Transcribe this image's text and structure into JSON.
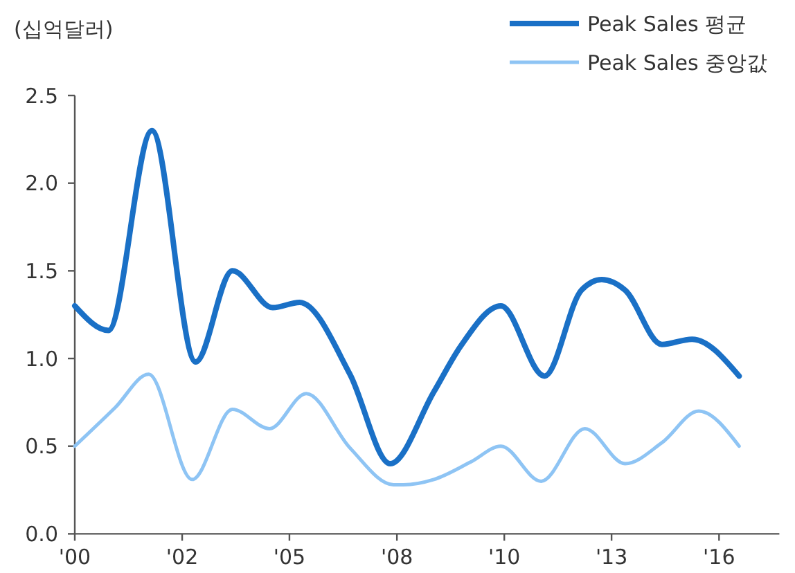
{
  "chart_data": {
    "type": "line",
    "ylabel": "(십억달러)",
    "legend": "top right",
    "grid": false,
    "marker": "none",
    "line_style": "solid",
    "xlim": [
      "2000-01",
      "2017-07"
    ],
    "ylim": [
      0,
      2.5
    ],
    "xticks": [
      {
        "value": "2000-01",
        "label": "'00"
      },
      {
        "value": "2002-09",
        "label": "'02"
      },
      {
        "value": "2005-05",
        "label": "'05"
      },
      {
        "value": "2008-01",
        "label": "'08"
      },
      {
        "value": "2010-09",
        "label": "'10"
      },
      {
        "value": "2013-05",
        "label": "'13"
      },
      {
        "value": "2016-01",
        "label": "'16"
      }
    ],
    "yticks": [
      {
        "value": 0,
        "label": "0.0"
      },
      {
        "value": 0.5,
        "label": "0.5"
      },
      {
        "value": 1,
        "label": "1.0"
      },
      {
        "value": 1.5,
        "label": "1.5"
      },
      {
        "value": 2,
        "label": "2.0"
      },
      {
        "value": 2.5,
        "label": "2.5"
      }
    ],
    "series": [
      {
        "name": "Peak Sales 평균",
        "color": "#1a70c6",
        "x": [
          "2000-01",
          "2000-11",
          "2001-12",
          "2003-01",
          "2003-12",
          "2004-12",
          "2005-08",
          "2006-11",
          "2007-11",
          "2008-12",
          "2009-08",
          "2010-08",
          "2011-09",
          "2012-08",
          "2013-02",
          "2013-09",
          "2014-08",
          "2015-05",
          "2016-07"
        ],
        "values": [
          1.3,
          1.16,
          2.3,
          0.98,
          1.5,
          1.29,
          1.32,
          0.91,
          0.4,
          0.81,
          1.07,
          1.3,
          0.9,
          1.39,
          1.45,
          1.39,
          1.08,
          1.11,
          0.9
        ]
      },
      {
        "name": "Peak Sales 중앙값",
        "color": "#8ec4f4",
        "x": [
          "2000-01",
          "2001-01",
          "2001-11",
          "2002-12",
          "2003-12",
          "2004-11",
          "2005-10",
          "2006-11",
          "2007-12",
          "2008-03",
          "2008-12",
          "2009-11",
          "2010-08",
          "2011-08",
          "2012-09",
          "2013-09",
          "2014-08",
          "2015-07",
          "2016-07"
        ],
        "values": [
          0.5,
          0.72,
          0.91,
          0.31,
          0.71,
          0.6,
          0.8,
          0.49,
          0.28,
          0.28,
          0.31,
          0.41,
          0.5,
          0.3,
          0.6,
          0.4,
          0.52,
          0.7,
          0.5
        ]
      }
    ]
  }
}
